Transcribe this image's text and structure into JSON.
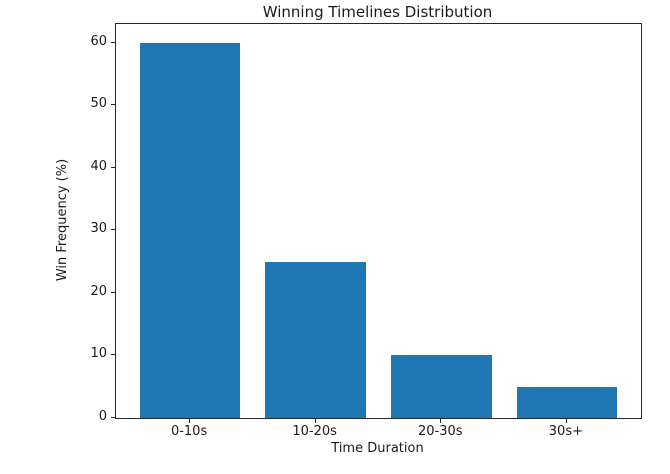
{
  "chart_data": {
    "type": "bar",
    "title": "Winning Timelines Distribution",
    "xlabel": "Time Duration",
    "ylabel": "Win Frequency (%)",
    "categories": [
      "0-10s",
      "10-20s",
      "20-30s",
      "30s+"
    ],
    "values": [
      60,
      25,
      10,
      5
    ],
    "yticks": [
      0,
      10,
      20,
      30,
      40,
      50,
      60
    ],
    "ylim": [
      0,
      63
    ],
    "bar_color": "#1f77b4",
    "spine_color": "#262626",
    "background_color": "#ffffff",
    "grid": false,
    "legend": "none"
  }
}
